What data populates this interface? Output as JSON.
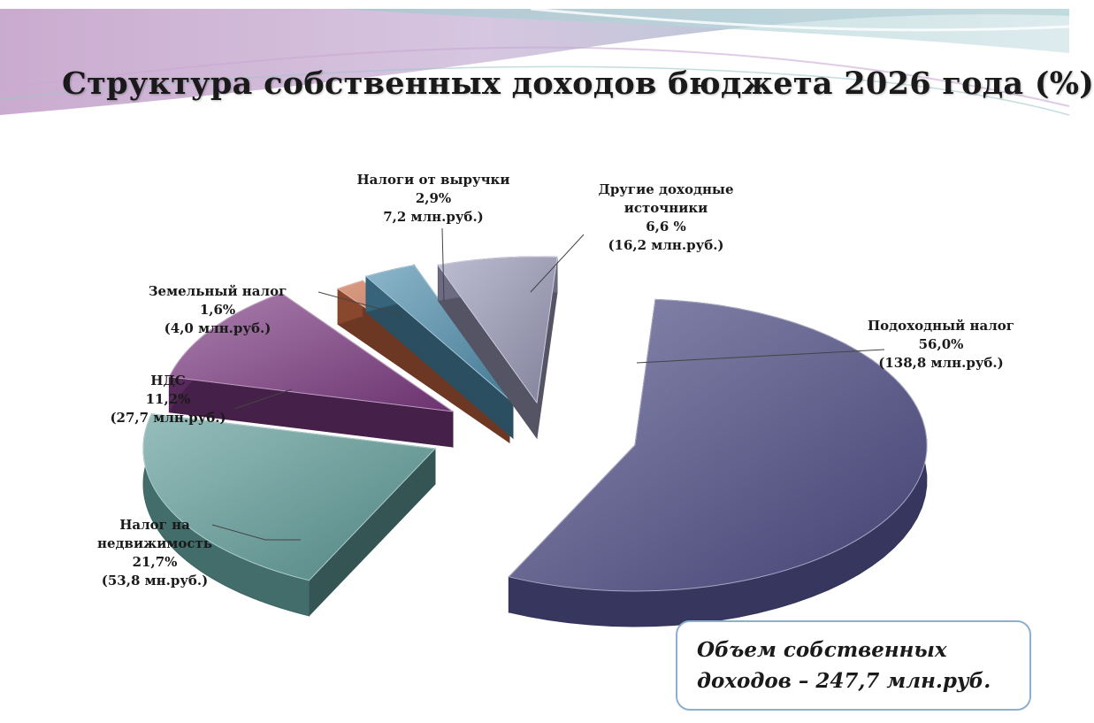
{
  "title": "Структура собственных доходов бюджета 2026 года (%)",
  "total": {
    "line1": "Объем собственных",
    "line2": "доходов – 247,7 млн.руб."
  },
  "chart_data": {
    "type": "pie",
    "title": "Структура собственных доходов бюджета 2026 года (%)",
    "unit": "%",
    "slices": [
      {
        "name": "Подоходный налог",
        "value": 56.0,
        "amount": 138.8,
        "color": "#4e4d86",
        "label_lines": [
          "Подоходный налог",
          "56,0%",
          "(138,8 млн.руб.)"
        ]
      },
      {
        "name": "Налог на недвижимость",
        "value": 21.7,
        "amount": 53.8,
        "color": "#5e9b98",
        "label_lines": [
          "Налог на",
          "недвижимость",
          "21,7%",
          "(53,8 мн.руб.)"
        ]
      },
      {
        "name": "НДС",
        "value": 11.2,
        "amount": 27.7,
        "color": "#7e3b82",
        "label_lines": [
          "НДС",
          "11,2%",
          "(27,7 млн.руб.)"
        ]
      },
      {
        "name": "Земельный налог",
        "value": 1.6,
        "amount": 4.0,
        "color": "#c46642",
        "label_lines": [
          "Земельный налог",
          "1,6%",
          "(4,0 млн.руб.)"
        ]
      },
      {
        "name": "Налоги от выручки",
        "value": 2.9,
        "amount": 7.2,
        "color": "#4f8fae",
        "label_lines": [
          "Налоги от выручки",
          "2,9%",
          "7,2 млн.руб.)"
        ]
      },
      {
        "name": "Другие доходные источники",
        "value": 6.6,
        "amount": 16.2,
        "color": "#9a99b8",
        "label_lines": [
          "Другие доходные",
          "источники",
          "6,6 %",
          "(16,2 млн.руб.)"
        ]
      }
    ]
  }
}
